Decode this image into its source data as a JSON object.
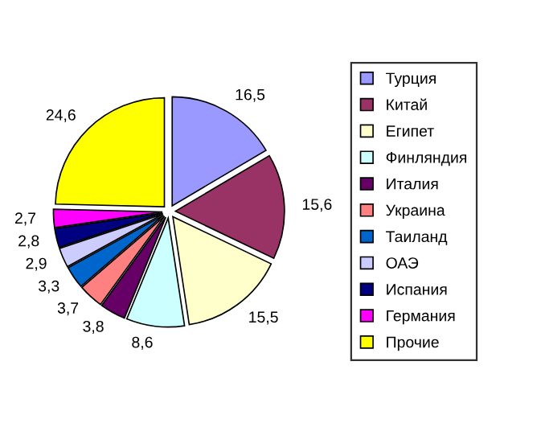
{
  "chart_data": {
    "type": "pie",
    "categories": [
      "Турция",
      "Китай",
      "Египет",
      "Финляндия",
      "Италия",
      "Украина",
      "Таиланд",
      "ОАЭ",
      "Испания",
      "Германия",
      "Прочие"
    ],
    "values": [
      16.5,
      15.6,
      15.5,
      8.6,
      3.8,
      3.7,
      3.3,
      2.9,
      2.8,
      2.7,
      24.6
    ],
    "value_labels": [
      "16,5",
      "15,6",
      "15,5",
      "8,6",
      "3,8",
      "3,7",
      "3,3",
      "2,9",
      "2,8",
      "2,7",
      "24,6"
    ],
    "colors": [
      "#9999ff",
      "#993366",
      "#ffffcc",
      "#ccffff",
      "#660066",
      "#ff8080",
      "#0066cc",
      "#ccccff",
      "#000080",
      "#ff00ff",
      "#ffff00"
    ],
    "legend": "right"
  }
}
